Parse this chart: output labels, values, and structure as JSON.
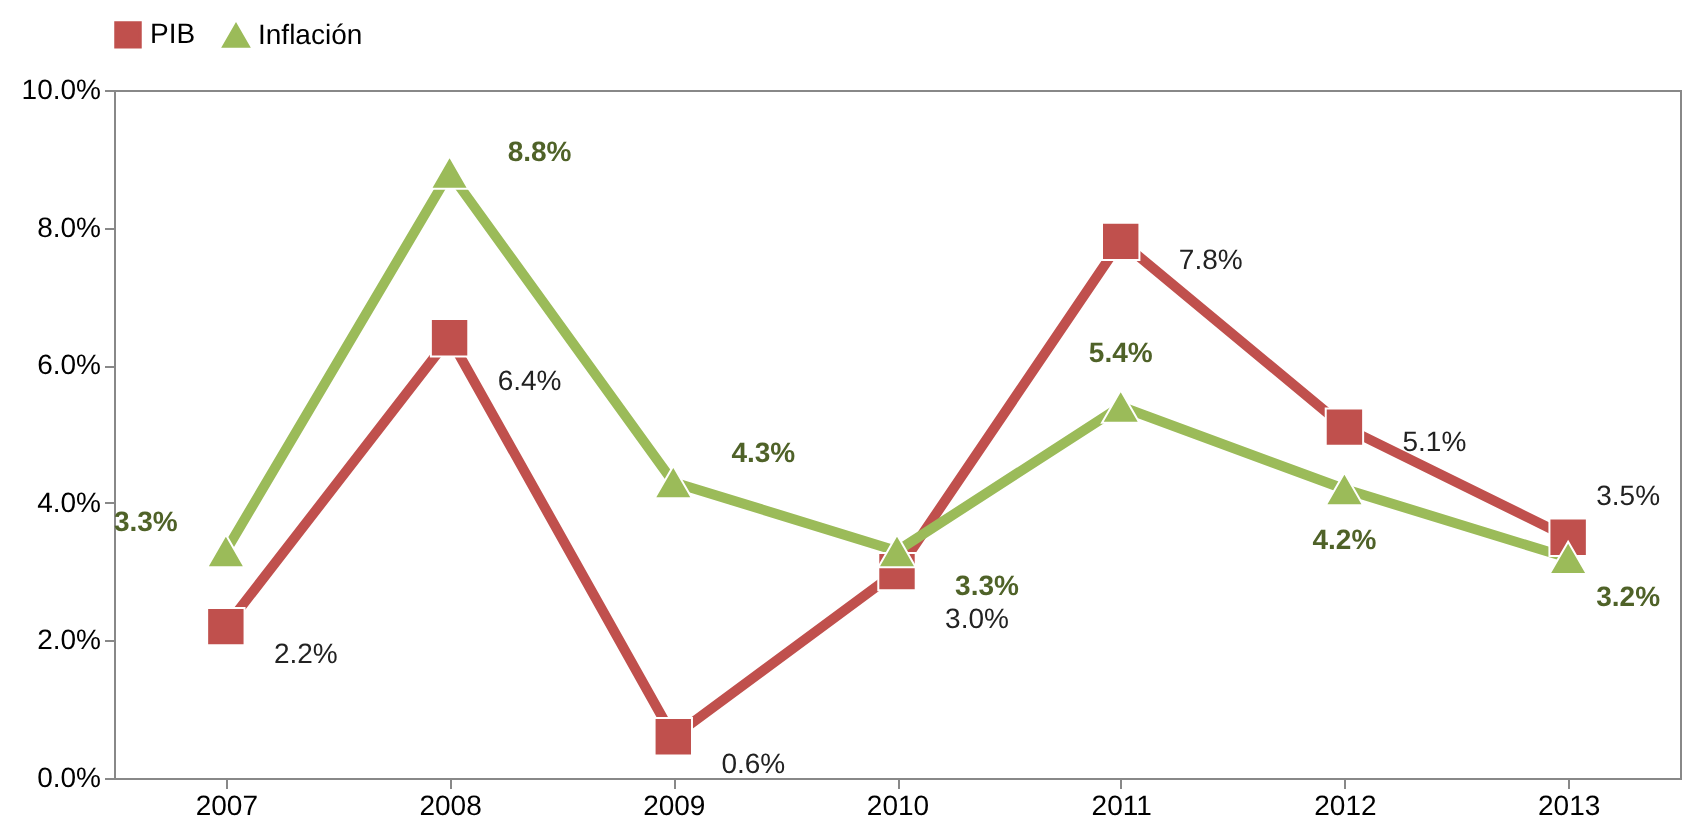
{
  "chart_data": {
    "type": "line",
    "categories": [
      "2007",
      "2008",
      "2009",
      "2010",
      "2011",
      "2012",
      "2013"
    ],
    "series": [
      {
        "name": "PIB",
        "color": "#c0504d",
        "marker": "square",
        "values": [
          2.2,
          6.4,
          0.6,
          3.0,
          7.8,
          5.1,
          3.5
        ],
        "value_labels": [
          "2.2%",
          "6.4%",
          "0.6%",
          "3.0%",
          "7.8%",
          "5.1%",
          "3.5%"
        ]
      },
      {
        "name": "Inflación",
        "color": "#9bbb59",
        "marker": "triangle",
        "values": [
          3.3,
          8.8,
          4.3,
          3.3,
          5.4,
          4.2,
          3.2
        ],
        "value_labels": [
          "3.3%",
          "8.8%",
          "4.3%",
          "3.3%",
          "5.4%",
          "4.2%",
          "3.2%"
        ]
      }
    ],
    "ylim": [
      0,
      10
    ],
    "yticks": [
      {
        "value": 0,
        "label": "0.0%"
      },
      {
        "value": 2,
        "label": "2.0%"
      },
      {
        "value": 4,
        "label": "4.0%"
      },
      {
        "value": 6,
        "label": "6.0%"
      },
      {
        "value": 8,
        "label": "8.0%"
      },
      {
        "value": 10,
        "label": "10.0%"
      }
    ],
    "grid": false,
    "legend": "top",
    "line_style": "solid"
  }
}
